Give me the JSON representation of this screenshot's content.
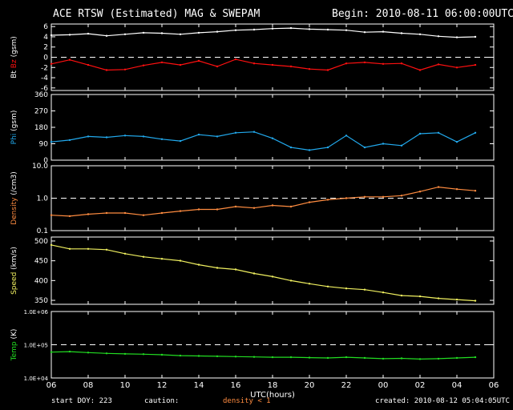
{
  "header": {
    "title": "ACE RTSW (Estimated) MAG & SWEPAM",
    "begin": "Begin: 2010-08-11 06:00:00UTC"
  },
  "footer": {
    "start_doy": "start DOY: 223",
    "caution": "caution:",
    "density_note": "density < 1",
    "created": "created: 2010-08-12 05:04:05UTC"
  },
  "colors": {
    "bt": "#ffffff",
    "bz": "#ff1010",
    "phi": "#22aaee",
    "density": "#ff8c40",
    "speed": "#f0f060",
    "temp": "#22dd22",
    "density_note": "#ff8c40"
  },
  "chart_data": {
    "type": "scatter",
    "xlabel": "UTC(hours)",
    "x_ticks": [
      "06",
      "08",
      "10",
      "12",
      "14",
      "16",
      "18",
      "20",
      "22",
      "00",
      "02",
      "04",
      "06"
    ],
    "x_range": [
      "2010-08-11 06:00",
      "2010-08-12 06:00"
    ],
    "panels": [
      {
        "id": "mag",
        "ylabel_parts": [
          {
            "text": "Bt",
            "color": "#ffffff"
          },
          {
            "text": "Bz",
            "color": "#ff1010"
          },
          {
            "text": "(gsm)",
            "color": "#ffffff"
          }
        ],
        "y_ticks": [
          "6",
          "4",
          "2",
          "0",
          "-2",
          "-4",
          "-6"
        ],
        "ylim": [
          -6.5,
          6.5
        ],
        "scale": "linear",
        "reference_line": 0,
        "series": [
          {
            "name": "Bt",
            "color": "#ffffff",
            "x": [
              0,
              1,
              2,
              3,
              4,
              5,
              6,
              7,
              8,
              9,
              10,
              11,
              12,
              13,
              14,
              15,
              16,
              17,
              18,
              19,
              20,
              21,
              22,
              23
            ],
            "y": [
              4.3,
              4.4,
              4.6,
              4.2,
              4.5,
              4.8,
              4.7,
              4.5,
              4.8,
              5.0,
              5.3,
              5.4,
              5.6,
              5.7,
              5.5,
              5.4,
              5.3,
              4.9,
              5.0,
              4.7,
              4.5,
              4.1,
              3.9,
              4.0
            ]
          },
          {
            "name": "Bz",
            "color": "#ff1010",
            "x": [
              0,
              1,
              2,
              3,
              4,
              5,
              6,
              7,
              8,
              9,
              10,
              11,
              12,
              13,
              14,
              15,
              16,
              17,
              18,
              19,
              20,
              21,
              22,
              23
            ],
            "y": [
              -1.3,
              -0.5,
              -1.5,
              -2.5,
              -2.4,
              -1.6,
              -1.0,
              -1.5,
              -0.7,
              -1.8,
              -0.4,
              -1.2,
              -1.5,
              -1.8,
              -2.3,
              -2.5,
              -1.2,
              -1.0,
              -1.3,
              -1.2,
              -2.5,
              -1.4,
              -2.0,
              -1.5
            ]
          }
        ]
      },
      {
        "id": "phi",
        "ylabel_parts": [
          {
            "text": "Phi",
            "color": "#22aaee"
          },
          {
            "text": "(gsm)",
            "color": "#ffffff"
          }
        ],
        "y_ticks": [
          "360",
          "270",
          "180",
          "90",
          "0"
        ],
        "ylim": [
          0,
          360
        ],
        "scale": "linear",
        "series": [
          {
            "name": "Phi",
            "color": "#22aaee",
            "x": [
              0,
              1,
              2,
              3,
              4,
              5,
              6,
              7,
              8,
              9,
              10,
              11,
              12,
              13,
              14,
              15,
              16,
              17,
              18,
              19,
              20,
              21,
              22,
              23
            ],
            "y": [
              100,
              110,
              130,
              125,
              135,
              130,
              115,
              105,
              140,
              130,
              150,
              155,
              120,
              70,
              55,
              70,
              135,
              70,
              90,
              80,
              145,
              150,
              100,
              150
            ]
          }
        ]
      },
      {
        "id": "density",
        "ylabel_parts": [
          {
            "text": "Density",
            "color": "#ff8c40"
          },
          {
            "text": "(/cm3)",
            "color": "#ffffff"
          }
        ],
        "y_ticks": [
          "10.0",
          "1.0",
          "0.1"
        ],
        "ylim": [
          0.1,
          10
        ],
        "scale": "log",
        "reference_line": 1.0,
        "series": [
          {
            "name": "Density",
            "color": "#ff8c40",
            "x": [
              0,
              1,
              2,
              3,
              4,
              5,
              6,
              7,
              8,
              9,
              10,
              11,
              12,
              13,
              14,
              15,
              16,
              17,
              18,
              19,
              20,
              21,
              22,
              23
            ],
            "y": [
              0.3,
              0.28,
              0.32,
              0.35,
              0.35,
              0.3,
              0.35,
              0.4,
              0.45,
              0.45,
              0.55,
              0.5,
              0.6,
              0.55,
              0.75,
              0.9,
              1.0,
              1.1,
              1.1,
              1.2,
              1.6,
              2.2,
              1.9,
              1.7
            ]
          }
        ]
      },
      {
        "id": "speed",
        "ylabel_parts": [
          {
            "text": "Speed",
            "color": "#f0f060"
          },
          {
            "text": "(km/s)",
            "color": "#ffffff"
          }
        ],
        "y_ticks": [
          "500",
          "450",
          "400",
          "350"
        ],
        "ylim": [
          340,
          510
        ],
        "scale": "linear",
        "series": [
          {
            "name": "Speed",
            "color": "#f0f060",
            "x": [
              0,
              1,
              2,
              3,
              4,
              5,
              6,
              7,
              8,
              9,
              10,
              11,
              12,
              13,
              14,
              15,
              16,
              17,
              18,
              19,
              20,
              21,
              22,
              23
            ],
            "y": [
              490,
              480,
              480,
              478,
              468,
              460,
              455,
              450,
              440,
              432,
              428,
              418,
              410,
              400,
              392,
              385,
              380,
              377,
              370,
              362,
              360,
              355,
              352,
              349
            ]
          }
        ]
      },
      {
        "id": "temp",
        "ylabel_parts": [
          {
            "text": "Temp",
            "color": "#22dd22"
          },
          {
            "text": "(K)",
            "color": "#ffffff"
          }
        ],
        "y_ticks": [
          "1.0E+06",
          "1.0E+05",
          "1.0E+04"
        ],
        "ylim": [
          10000,
          1000000
        ],
        "scale": "log",
        "reference_line": 100000,
        "series": [
          {
            "name": "Temp",
            "color": "#22dd22",
            "x": [
              0,
              1,
              2,
              3,
              4,
              5,
              6,
              7,
              8,
              9,
              10,
              11,
              12,
              13,
              14,
              15,
              16,
              17,
              18,
              19,
              20,
              21,
              22,
              23
            ],
            "y": [
              60000,
              62000,
              58000,
              55000,
              53000,
              52000,
              50000,
              47000,
              46000,
              45000,
              44000,
              43000,
              42000,
              42000,
              41000,
              40000,
              42000,
              40000,
              38000,
              39000,
              37000,
              38000,
              40000,
              42000
            ]
          }
        ]
      }
    ]
  }
}
